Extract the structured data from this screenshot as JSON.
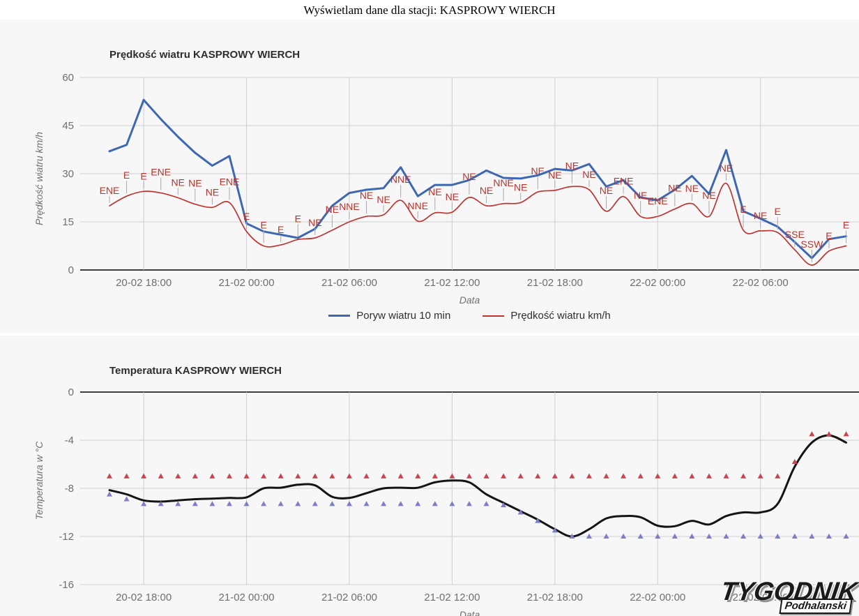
{
  "page": {
    "title": "Wyświetlam dane dla stacji: KASPROWY WIERCH"
  },
  "footer": {
    "logo_line1": "TYGODNIK",
    "logo_line2": "Podhalanski"
  },
  "chart_data": [
    {
      "type": "line",
      "title": "Prędkość wiatru KASPROWY WIERCH",
      "xlabel": "Data",
      "ylabel": "Prędkość wiatru km/h",
      "ylim": [
        0,
        60
      ],
      "yticks": [
        60,
        45,
        30,
        15,
        0
      ],
      "grid": true,
      "legend_position": "bottom",
      "background": "#f7f7f7",
      "x_ticks": [
        "20-02 18:00",
        "21-02 00:00",
        "21-02 06:00",
        "21-02 12:00",
        "21-02 18:00",
        "22-02 00:00",
        "22-02 06:00"
      ],
      "x_tick_indices": [
        2,
        8,
        14,
        20,
        26,
        32,
        38
      ],
      "series": [
        {
          "name": "Poryw wiatru 10 min",
          "color": "#3d68b1",
          "width": 3,
          "smooth": false,
          "values": [
            37,
            39,
            53,
            47,
            41.5,
            36.5,
            32.5,
            35.5,
            14.5,
            12,
            11,
            10,
            12.8,
            20,
            24,
            25,
            25.5,
            32,
            23,
            26.5,
            26.5,
            28,
            31,
            28.7,
            28.5,
            29.5,
            31.5,
            31,
            33,
            26,
            28,
            22.6,
            21.7,
            25,
            29.3,
            23.7,
            37.4,
            18.3,
            16,
            13.5,
            8.7,
            3.7,
            9.6,
            10.5
          ]
        },
        {
          "name": "Prędkość wiatru km/h",
          "color": "#bd3531",
          "width": 1.7,
          "smooth": true,
          "annotation_color": "#b8352e",
          "values": [
            20,
            23,
            24.5,
            24,
            22.5,
            20.5,
            19.5,
            21,
            12,
            7.5,
            7.8,
            9.5,
            10,
            12.4,
            15,
            16.7,
            17.2,
            21.7,
            15.2,
            17.8,
            18,
            22.6,
            20,
            20.7,
            21,
            24.3,
            24.8,
            26,
            25,
            18.3,
            22.9,
            16.7,
            16.7,
            19,
            20.7,
            16.7,
            27,
            12.4,
            12.2,
            11.7,
            6.3,
            1.5,
            5.9,
            7.5
          ],
          "annotations": [
            "ENE",
            "E",
            "E",
            "ENE",
            "NE",
            "NE",
            "NE",
            "ENE",
            "E",
            "E",
            "E",
            "E",
            "NE",
            "NE",
            "NNE",
            "NE",
            "NE",
            "NNE",
            "NNE",
            "NE",
            "NE",
            "NE",
            "NE",
            "NNE",
            "NE",
            "NE",
            "NE",
            "NE",
            "NE",
            "NE",
            "ENE",
            "NE",
            "ENE",
            "NE",
            "NE",
            "NE",
            "NE",
            "E",
            "NE",
            "E",
            "SSE",
            "SSW",
            "E",
            "E"
          ]
        }
      ]
    },
    {
      "type": "line",
      "title": "Temperatura KASPROWY WIERCH",
      "xlabel": "Data",
      "ylabel": "Temperatura w °C",
      "ylim": [
        -16,
        0
      ],
      "yticks": [
        0,
        -4,
        -8,
        -12,
        -16
      ],
      "grid": true,
      "legend_position": "none",
      "background": "#f7f7f7",
      "x_ticks": [
        "20-02 18:00",
        "21-02 00:00",
        "21-02 06:00",
        "21-02 12:00",
        "21-02 18:00",
        "22-02 00:00",
        "22-02 06:00"
      ],
      "x_tick_indices": [
        2,
        8,
        14,
        20,
        26,
        32,
        38
      ],
      "series": [
        {
          "name": "Temperatura",
          "color": "#141414",
          "width": 3,
          "smooth": true,
          "values": [
            -8.15,
            -8.5,
            -9.0,
            -9.1,
            -9.0,
            -8.9,
            -8.85,
            -8.8,
            -8.75,
            -8.0,
            -7.95,
            -7.7,
            -7.75,
            -8.7,
            -8.8,
            -8.4,
            -8.0,
            -7.95,
            -7.95,
            -7.5,
            -7.35,
            -7.5,
            -8.5,
            -9.2,
            -9.9,
            -10.6,
            -11.4,
            -12.0,
            -11.4,
            -10.5,
            -10.3,
            -10.4,
            -11.1,
            -11.15,
            -10.7,
            -11.0,
            -10.3,
            -10.0,
            -10.0,
            -9.3,
            -6.2,
            -4.2,
            -3.6,
            -4.2
          ]
        },
        {
          "name": "red-markers",
          "color": "#c4454f",
          "marker": "triangle-up",
          "values": [
            -7.0,
            -7.0,
            -7.0,
            -7.0,
            -7.0,
            -7.0,
            -7.0,
            -7.0,
            -7.0,
            -7.0,
            -7.0,
            -7.0,
            -7.0,
            -7.0,
            -7.0,
            -7.0,
            -7.0,
            -7.0,
            -7.0,
            -7.0,
            -7.0,
            -7.0,
            -7.0,
            -7.0,
            -7.0,
            -7.0,
            -7.0,
            -7.0,
            -7.0,
            -7.0,
            -7.0,
            -7.0,
            -7.0,
            -7.0,
            -7.0,
            -7.0,
            -7.0,
            -7.0,
            -7.0,
            -7.0,
            -5.8,
            -3.5,
            -3.5,
            -3.5
          ]
        },
        {
          "name": "blue-markers",
          "color": "#7d7dc8",
          "marker": "triangle-up",
          "values": [
            -8.5,
            -8.9,
            -9.3,
            -9.3,
            -9.3,
            -9.3,
            -9.3,
            -9.3,
            -9.3,
            -9.3,
            -9.3,
            -9.3,
            -9.3,
            -9.3,
            -9.3,
            -9.3,
            -9.3,
            -9.3,
            -9.3,
            -9.3,
            -9.3,
            -9.3,
            -9.3,
            -9.4,
            -10.0,
            -10.7,
            -11.5,
            -12.0,
            -12.0,
            -12.0,
            -12.0,
            -12.0,
            -12.0,
            -12.0,
            -12.0,
            -12.0,
            -12.0,
            -12.0,
            -12.0,
            -12.0,
            -12.0,
            -12.0,
            -12.0,
            -12.0
          ]
        }
      ]
    }
  ]
}
